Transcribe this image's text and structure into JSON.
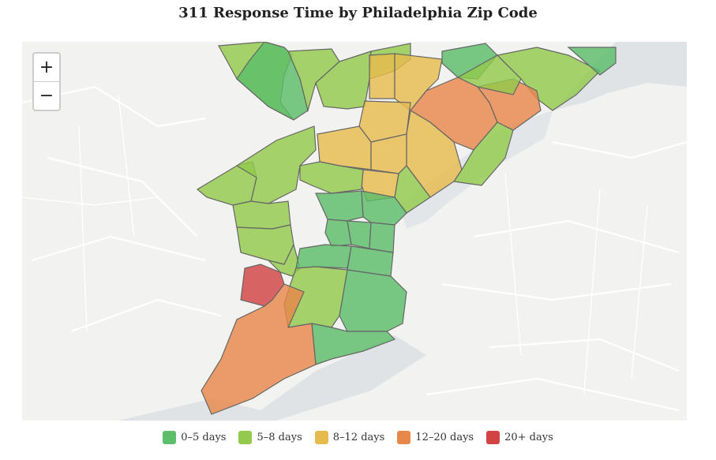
{
  "title": "311 Response Time by Philadelphia Zip Code",
  "zoom": {
    "in_label": "+",
    "out_label": "−"
  },
  "colors": {
    "0-5": "#5cbd6a",
    "5-8": "#93c94c",
    "8-12": "#e6bb4e",
    "12-20": "#e8874a",
    "20+": "#d24343"
  },
  "legend": [
    {
      "key": "0-5",
      "label": "0–5 days"
    },
    {
      "key": "5-8",
      "label": "5–8 days"
    },
    {
      "key": "8-12",
      "label": "8–12 days"
    },
    {
      "key": "12-20",
      "label": "12–20 days"
    },
    {
      "key": "20+",
      "label": "20+ days"
    }
  ]
}
